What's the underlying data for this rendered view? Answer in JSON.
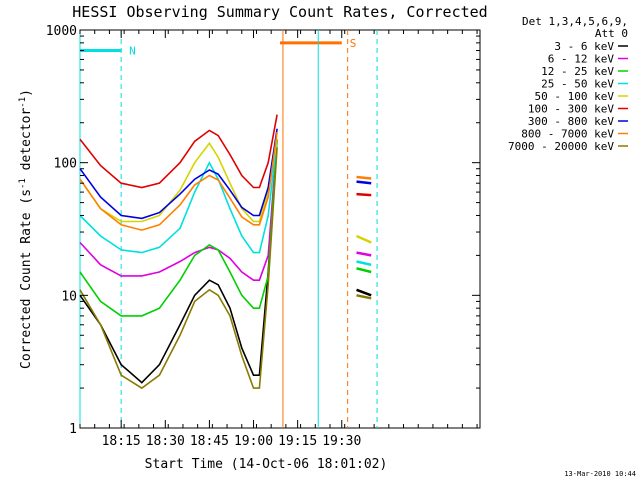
{
  "chart_data": {
    "type": "line",
    "title": "HESSI Observing Summary Count Rates, Corrected",
    "xlabel": "Start Time (14-Oct-06 18:01:02)",
    "ylabel_main": "Corrected Count Rate (s",
    "ylabel_sup1": "-1",
    "ylabel_mid": " detector",
    "ylabel_sup2": "-1",
    "ylabel_end": ")",
    "footer_date": "13-Mar-2010 10:44",
    "x_unit": "minutes since 18:00 UT",
    "xlim": [
      1,
      137
    ],
    "ylim": [
      1,
      1000
    ],
    "y_scale": "log",
    "x_ticks": [
      {
        "x": 15,
        "label": "18:15"
      },
      {
        "x": 30,
        "label": "18:30"
      },
      {
        "x": 45,
        "label": "18:45"
      },
      {
        "x": 60,
        "label": "19:00"
      },
      {
        "x": 75,
        "label": "19:15"
      },
      {
        "x": 90,
        "label": "19:30"
      }
    ],
    "y_ticks": [
      {
        "y": 1,
        "label": "1"
      },
      {
        "y": 10,
        "label": "10"
      },
      {
        "y": 100,
        "label": "100"
      },
      {
        "y": 1000,
        "label": "1000"
      }
    ],
    "legend_title_1": "Det 1,3,4,5,6,9,",
    "legend_title_2": "Att 0",
    "legend_position": "right-outside",
    "series": [
      {
        "name": "3 - 6 keV",
        "color": "#000000",
        "x": [
          1,
          8,
          15,
          22,
          28,
          35,
          40,
          45,
          48,
          52,
          56,
          60,
          62,
          65,
          68,
          95,
          100
        ],
        "y": [
          10,
          6,
          3,
          2.2,
          3,
          6,
          10,
          13,
          12,
          8,
          4,
          2.5,
          2.5,
          15,
          150,
          11,
          10
        ]
      },
      {
        "name": "6 - 12 keV",
        "color": "#e000e0",
        "x": [
          1,
          8,
          15,
          22,
          28,
          35,
          40,
          45,
          48,
          52,
          56,
          60,
          62,
          65,
          68,
          95,
          100
        ],
        "y": [
          25,
          17,
          14,
          14,
          15,
          18,
          21,
          23,
          22,
          19,
          15,
          13,
          13,
          20,
          150,
          21,
          20
        ]
      },
      {
        "name": "12 - 25 keV",
        "color": "#00d000",
        "x": [
          1,
          8,
          15,
          22,
          28,
          35,
          40,
          45,
          48,
          52,
          56,
          60,
          62,
          65,
          68,
          95,
          100
        ],
        "y": [
          15,
          9,
          7,
          7,
          8,
          13,
          20,
          24,
          22,
          15,
          10,
          8,
          8,
          14,
          150,
          16,
          15
        ]
      },
      {
        "name": "25 - 50 keV",
        "color": "#00e0e0",
        "x": [
          1,
          8,
          15,
          22,
          28,
          35,
          40,
          45,
          48,
          52,
          56,
          60,
          62,
          65,
          68,
          95,
          100
        ],
        "y": [
          40,
          28,
          22,
          21,
          23,
          32,
          60,
          100,
          75,
          45,
          28,
          21,
          21,
          40,
          150,
          18,
          17
        ]
      },
      {
        "name": "50 - 100 keV",
        "color": "#d4d400",
        "x": [
          1,
          8,
          15,
          22,
          28,
          35,
          40,
          45,
          48,
          52,
          56,
          60,
          62,
          65,
          68,
          95,
          100
        ],
        "y": [
          75,
          45,
          36,
          36,
          40,
          62,
          100,
          140,
          110,
          70,
          45,
          36,
          36,
          60,
          150,
          28,
          25
        ]
      },
      {
        "name": "100 - 300 keV",
        "color": "#e00000",
        "x": [
          1,
          8,
          15,
          22,
          28,
          35,
          40,
          45,
          48,
          52,
          56,
          60,
          62,
          65,
          68,
          95,
          100
        ],
        "y": [
          150,
          95,
          70,
          65,
          70,
          100,
          145,
          175,
          160,
          115,
          80,
          65,
          65,
          100,
          230,
          58,
          57
        ]
      },
      {
        "name": "300 - 800 keV",
        "color": "#0000e0",
        "x": [
          1,
          8,
          15,
          22,
          28,
          35,
          40,
          45,
          48,
          52,
          56,
          60,
          62,
          65,
          68,
          95,
          100
        ],
        "y": [
          90,
          55,
          40,
          38,
          42,
          58,
          75,
          88,
          82,
          62,
          46,
          40,
          40,
          65,
          180,
          72,
          70
        ]
      },
      {
        "name": "800 - 7000 keV",
        "color": "#ff8000",
        "x": [
          1,
          8,
          15,
          22,
          28,
          35,
          40,
          45,
          48,
          52,
          56,
          60,
          62,
          65,
          68,
          95,
          100
        ],
        "y": [
          75,
          45,
          34,
          31,
          34,
          48,
          68,
          80,
          74,
          54,
          39,
          34,
          34,
          55,
          170,
          78,
          76
        ]
      },
      {
        "name": "7000 - 20000 keV",
        "color": "#8a7a00",
        "x": [
          1,
          8,
          15,
          22,
          28,
          35,
          40,
          45,
          48,
          52,
          56,
          60,
          62,
          65,
          68,
          95,
          100
        ],
        "y": [
          11,
          6,
          2.5,
          2,
          2.5,
          5,
          9,
          11,
          10,
          7,
          3.5,
          2,
          2,
          12,
          130,
          10,
          9.5
        ]
      }
    ],
    "annotations": [
      {
        "label": "N",
        "color": "#00e0e0",
        "x_start": 1,
        "x_end": 15,
        "y": 700
      },
      {
        "label": "S",
        "color": "#ff7000",
        "x_start": 69,
        "x_end": 90,
        "y": 800
      }
    ]
  }
}
